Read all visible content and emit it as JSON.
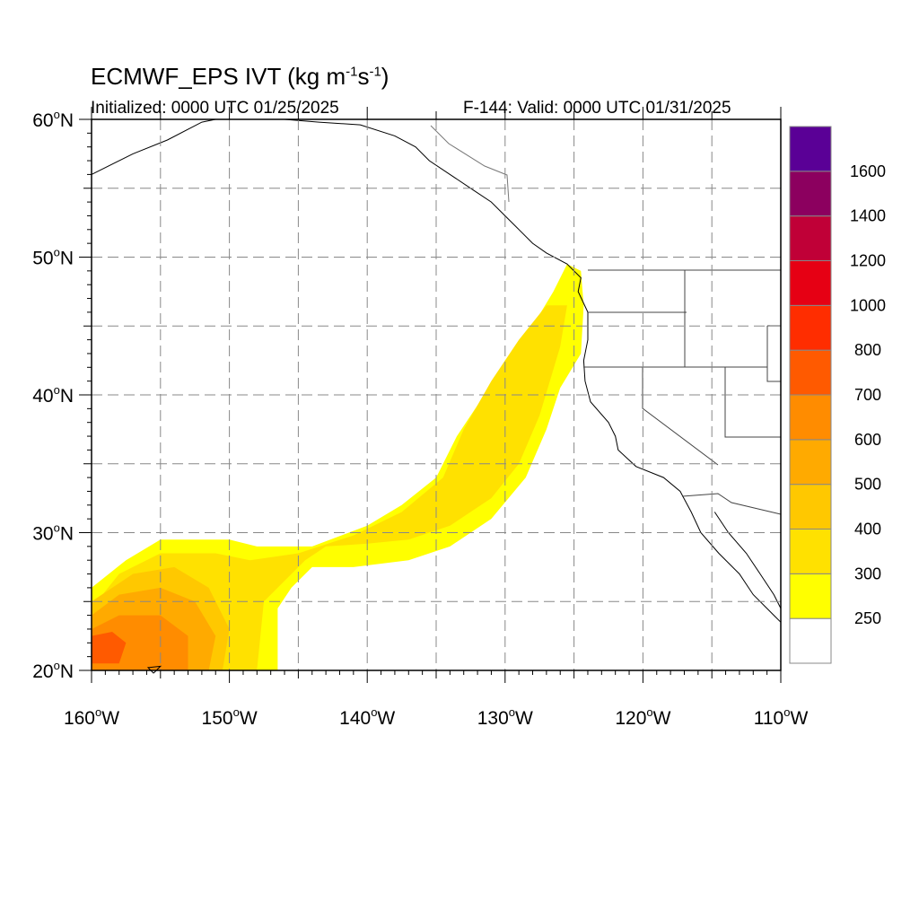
{
  "header": {
    "title_main": "ECMWF_EPS IVT (kg m",
    "title_sup1": "-1",
    "title_mid": "s",
    "title_sup2": "-1",
    "title_end": ")",
    "initialized": "Initialized: 0000 UTC 01/25/2025",
    "valid": "F-144: Valid: 0000 UTC 01/31/2025"
  },
  "map": {
    "lon_range": [
      -160,
      -110
    ],
    "lat_range": [
      20,
      60
    ],
    "lon_ticks": [
      {
        "value": -160,
        "label": "160"
      },
      {
        "value": -150,
        "label": "150"
      },
      {
        "value": -140,
        "label": "140"
      },
      {
        "value": -130,
        "label": "130"
      },
      {
        "value": -120,
        "label": "120"
      },
      {
        "value": -110,
        "label": "110"
      }
    ],
    "lat_ticks": [
      {
        "value": 20,
        "label": "20"
      },
      {
        "value": 30,
        "label": "30"
      },
      {
        "value": 40,
        "label": "40"
      },
      {
        "value": 50,
        "label": "50"
      },
      {
        "value": 60,
        "label": "60"
      }
    ],
    "lon_suffix": "W",
    "lat_suffix": "N",
    "degree_mark": "o",
    "grid_step_deg": 5,
    "plume_yellow": [
      [
        -125.5,
        49.5
      ],
      [
        -124.5,
        49.0
      ],
      [
        -124.3,
        46.5
      ],
      [
        -124.5,
        43.0
      ],
      [
        -126.0,
        40.5
      ],
      [
        -127.0,
        37.5
      ],
      [
        -128.5,
        34.0
      ],
      [
        -131.0,
        31.0
      ],
      [
        -134.0,
        29.0
      ],
      [
        -137.0,
        28.0
      ],
      [
        -141.0,
        27.5
      ],
      [
        -144.0,
        27.5
      ],
      [
        -145.5,
        26.0
      ],
      [
        -146.5,
        24.5
      ],
      [
        -146.5,
        20.0
      ],
      [
        -160.0,
        20.0
      ],
      [
        -160.0,
        26.0
      ],
      [
        -157.5,
        28.0
      ],
      [
        -155.0,
        29.5
      ],
      [
        -150.0,
        29.5
      ],
      [
        -148.0,
        29.0
      ],
      [
        -144.0,
        29.0
      ],
      [
        -140.0,
        30.5
      ],
      [
        -137.5,
        32.0
      ],
      [
        -135.0,
        34.0
      ],
      [
        -133.5,
        37.0
      ],
      [
        -131.5,
        40.0
      ],
      [
        -130.0,
        42.5
      ],
      [
        -128.0,
        45.0
      ],
      [
        -126.5,
        47.5
      ]
    ],
    "plume_300": [
      [
        -125.5,
        46.5
      ],
      [
        -126.0,
        43.5
      ],
      [
        -127.5,
        38.5
      ],
      [
        -129.0,
        35.0
      ],
      [
        -131.0,
        32.5
      ],
      [
        -134.0,
        30.5
      ],
      [
        -137.0,
        29.5
      ],
      [
        -140.0,
        29.2
      ],
      [
        -143.0,
        29.0
      ],
      [
        -144.5,
        28.0
      ],
      [
        -146.0,
        26.5
      ],
      [
        -147.5,
        25.0
      ],
      [
        -148.0,
        20.0
      ],
      [
        -160.0,
        20.0
      ],
      [
        -160.0,
        24.5
      ],
      [
        -158.0,
        27.0
      ],
      [
        -155.0,
        28.5
      ],
      [
        -151.0,
        28.5
      ],
      [
        -148.5,
        28.0
      ],
      [
        -145.0,
        28.5
      ],
      [
        -141.0,
        29.8
      ],
      [
        -137.5,
        31.5
      ],
      [
        -134.5,
        34.0
      ],
      [
        -133.0,
        37.5
      ],
      [
        -131.0,
        41.0
      ],
      [
        -129.0,
        44.0
      ],
      [
        -127.0,
        46.5
      ]
    ],
    "plume_400": [
      [
        -150.5,
        20.0
      ],
      [
        -150.0,
        23.0
      ],
      [
        -151.5,
        26.0
      ],
      [
        -154.0,
        27.5
      ],
      [
        -157.0,
        27.0
      ],
      [
        -160.0,
        25.0
      ],
      [
        -160.0,
        20.0
      ]
    ],
    "plume_500": [
      [
        -151.5,
        20.0
      ],
      [
        -151.0,
        22.5
      ],
      [
        -152.5,
        25.0
      ],
      [
        -155.0,
        26.0
      ],
      [
        -158.0,
        25.5
      ],
      [
        -160.0,
        24.0
      ],
      [
        -160.0,
        20.0
      ]
    ],
    "plume_600": [
      [
        -153.0,
        20.0
      ],
      [
        -153.0,
        22.5
      ],
      [
        -155.0,
        24.0
      ],
      [
        -158.0,
        24.0
      ],
      [
        -160.0,
        23.0
      ],
      [
        -160.0,
        20.0
      ]
    ],
    "plume_700": [
      [
        -158.0,
        20.5
      ],
      [
        -157.5,
        22.0
      ],
      [
        -158.5,
        22.8
      ],
      [
        -160.0,
        22.5
      ],
      [
        -160.0,
        20.5
      ]
    ],
    "coastline": [
      [
        -160.0,
        56.0
      ],
      [
        -157.0,
        57.5
      ],
      [
        -154.5,
        58.5
      ],
      [
        -152.0,
        59.8
      ],
      [
        -151.0,
        60.0
      ]
    ],
    "coastline_na": [
      [
        -146.0,
        60.0
      ],
      [
        -143.5,
        59.8
      ],
      [
        -140.5,
        59.6
      ],
      [
        -138.0,
        58.8
      ],
      [
        -136.5,
        58.0
      ],
      [
        -135.5,
        57.0
      ],
      [
        -134.0,
        56.0
      ],
      [
        -132.5,
        55.0
      ],
      [
        -131.0,
        54.0
      ],
      [
        -130.0,
        53.0
      ],
      [
        -129.0,
        52.0
      ],
      [
        -128.0,
        51.0
      ],
      [
        -127.0,
        50.3
      ],
      [
        -125.5,
        49.5
      ],
      [
        -124.5,
        48.5
      ],
      [
        -124.7,
        47.5
      ],
      [
        -124.0,
        46.0
      ],
      [
        -124.0,
        44.0
      ],
      [
        -124.3,
        42.5
      ],
      [
        -124.2,
        41.0
      ],
      [
        -123.8,
        39.5
      ],
      [
        -122.5,
        38.0
      ],
      [
        -122.0,
        37.0
      ],
      [
        -121.8,
        36.0
      ],
      [
        -120.5,
        34.8
      ],
      [
        -118.5,
        34.0
      ],
      [
        -117.3,
        33.0
      ],
      [
        -116.5,
        31.5
      ],
      [
        -115.8,
        30.0
      ],
      [
        -114.5,
        28.5
      ],
      [
        -113.0,
        27.0
      ],
      [
        -112.0,
        25.5
      ],
      [
        -110.5,
        24.0
      ],
      [
        -110.0,
        23.5
      ]
    ],
    "coastline_baja_gulf": [
      [
        -114.8,
        31.5
      ],
      [
        -113.8,
        30.0
      ],
      [
        -112.5,
        28.5
      ],
      [
        -111.5,
        27.0
      ],
      [
        -110.5,
        25.5
      ],
      [
        -110.0,
        24.5
      ]
    ],
    "coastline_hawaii": [
      [
        -155.5,
        19.8
      ],
      [
        -155.0,
        20.3
      ],
      [
        -155.9,
        20.2
      ],
      [
        -155.5,
        19.8
      ]
    ],
    "colorbar": {
      "levels": [
        "250",
        "300",
        "400",
        "500",
        "600",
        "700",
        "800",
        "1000",
        "1200",
        "1400",
        "1600"
      ],
      "colors": [
        "#ffffff",
        "#ffff00",
        "#ffe100",
        "#ffc800",
        "#ffaa00",
        "#ff8c00",
        "#ff5a00",
        "#ff2d00",
        "#e60014",
        "#c00037",
        "#8c005f",
        "#5a0096"
      ]
    }
  }
}
